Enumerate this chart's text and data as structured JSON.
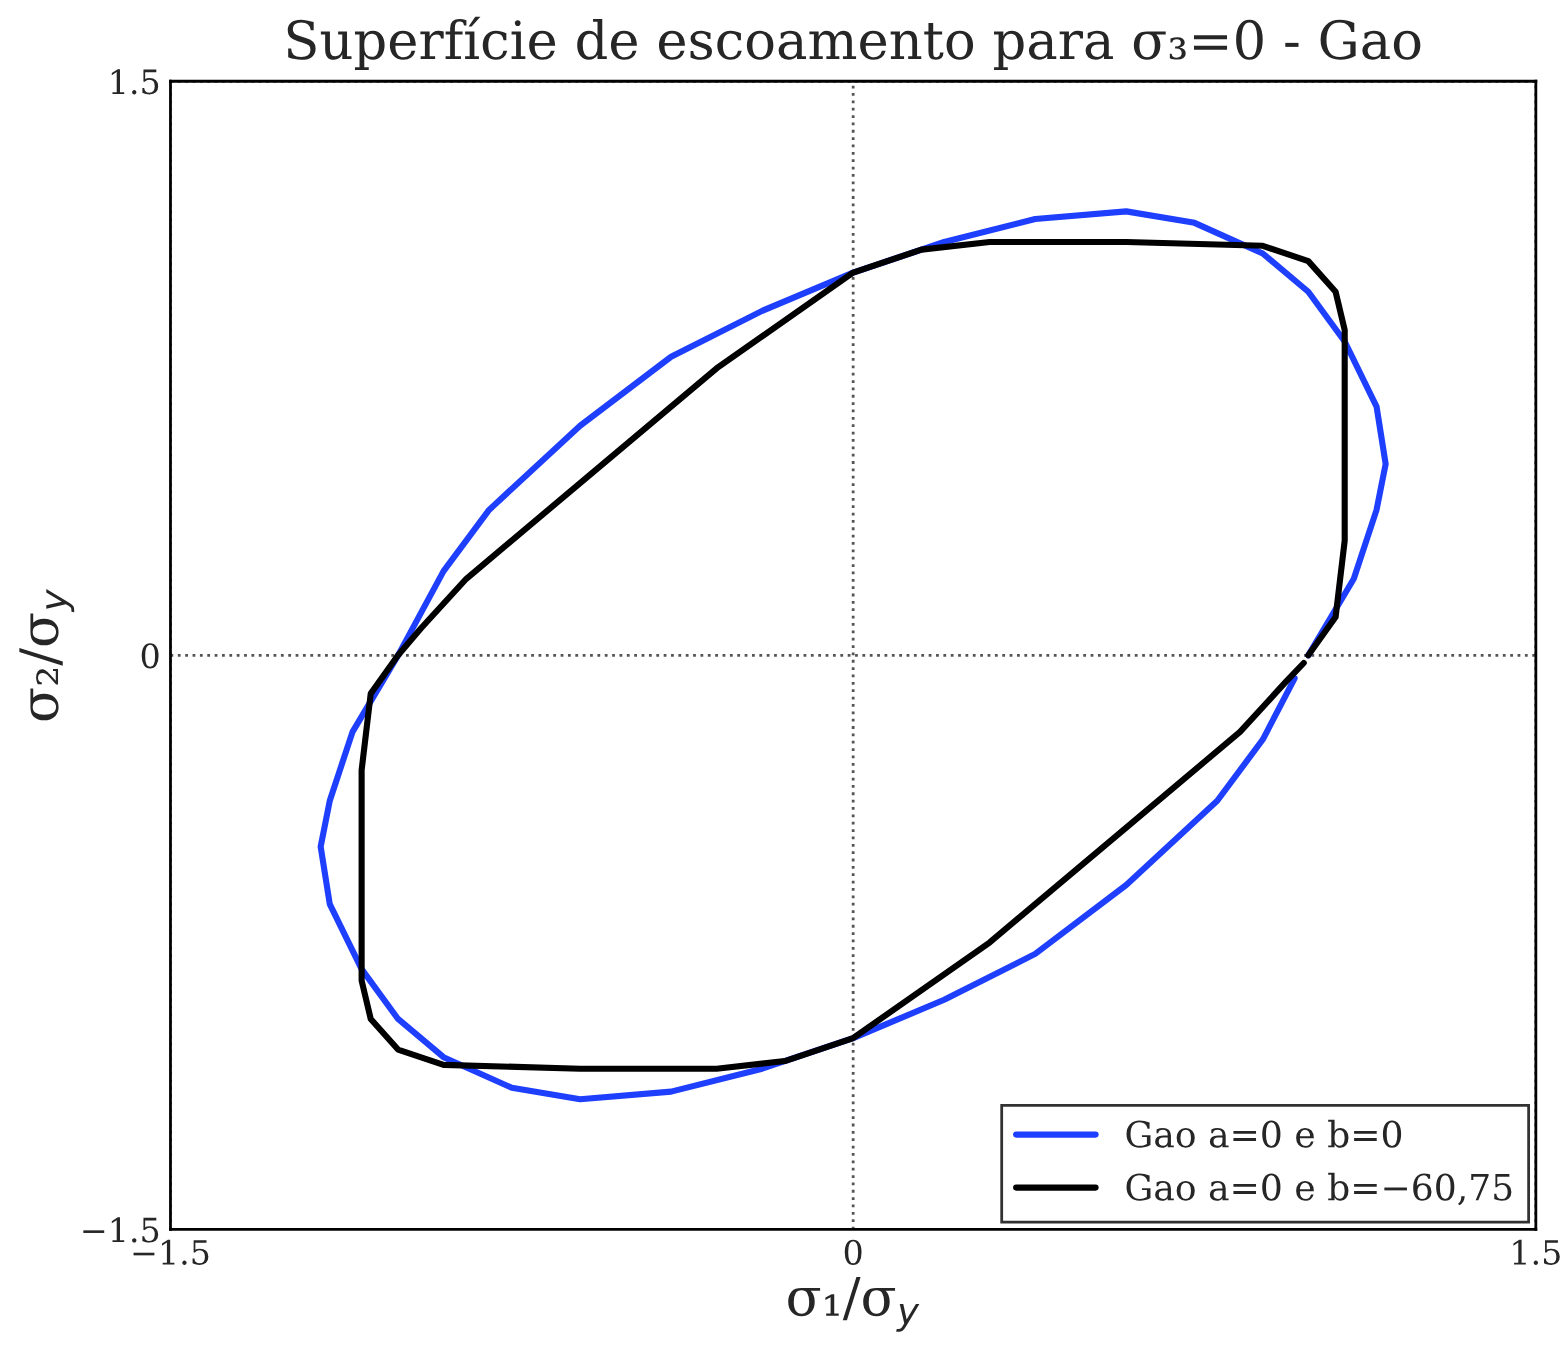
{
  "chart_data": {
    "type": "line",
    "title": "Superfície de escoamento para σ₃=0 - Gao",
    "xlabel": "σ₁/σ$_{y}$",
    "ylabel": "σ₂/σ$_{y}$",
    "xlim": [
      -1.5,
      1.5
    ],
    "ylim": [
      -1.5,
      1.5
    ],
    "xticks": [
      {
        "value": -1.5,
        "label": "−1.5"
      },
      0,
      1.5
    ],
    "yticks": [
      {
        "value": -1.5,
        "label": "−1.5"
      },
      0,
      1.5
    ],
    "grid": true,
    "legend": "bottom right",
    "line_style": "solid",
    "marker": "none",
    "series": [
      {
        "name": "Gao a=0 e b=0",
        "color": "#1f3fff",
        "x": [
          1.0,
          1.1,
          1.15,
          1.17,
          1.15,
          1.08,
          1.0,
          0.9,
          0.75,
          0.6,
          0.4,
          0.2,
          0.0,
          -0.2,
          -0.4,
          -0.6,
          -0.8,
          -0.9,
          -1.0,
          -1.1,
          -1.15,
          -1.17,
          -1.15,
          -1.08,
          -1.0,
          -0.9,
          -0.75,
          -0.6,
          -0.4,
          -0.2,
          0.0,
          0.2,
          0.4,
          0.6,
          0.8,
          0.9,
          0.97
        ],
        "values": [
          0.0,
          0.2,
          0.38,
          0.5,
          0.65,
          0.82,
          0.95,
          1.05,
          1.13,
          1.16,
          1.14,
          1.08,
          1.0,
          0.9,
          0.78,
          0.6,
          0.38,
          0.22,
          0.0,
          -0.2,
          -0.38,
          -0.5,
          -0.65,
          -0.82,
          -0.95,
          -1.05,
          -1.13,
          -1.16,
          -1.14,
          -1.08,
          -1.0,
          -0.9,
          -0.78,
          -0.6,
          -0.38,
          -0.22,
          -0.06
        ]
      },
      {
        "name": "Gao a=0 e b=−60,75",
        "color": "#000000",
        "x": [
          1.0,
          1.06,
          1.08,
          1.08,
          1.08,
          1.06,
          1.0,
          0.9,
          0.6,
          0.3,
          0.15,
          0.0,
          -0.3,
          -0.6,
          -0.85,
          -0.95,
          -1.0,
          -1.06,
          -1.08,
          -1.08,
          -1.08,
          -1.06,
          -1.0,
          -0.9,
          -0.6,
          -0.3,
          -0.15,
          0.0,
          0.3,
          0.6,
          0.85,
          0.95,
          0.99
        ],
        "values": [
          0.0,
          0.1,
          0.3,
          0.6,
          0.85,
          0.95,
          1.03,
          1.07,
          1.08,
          1.08,
          1.06,
          1.0,
          0.75,
          0.45,
          0.2,
          0.07,
          0.0,
          -0.1,
          -0.3,
          -0.6,
          -0.85,
          -0.95,
          -1.03,
          -1.07,
          -1.08,
          -1.08,
          -1.06,
          -1.0,
          -0.75,
          -0.45,
          -0.2,
          -0.07,
          -0.02
        ]
      }
    ]
  }
}
